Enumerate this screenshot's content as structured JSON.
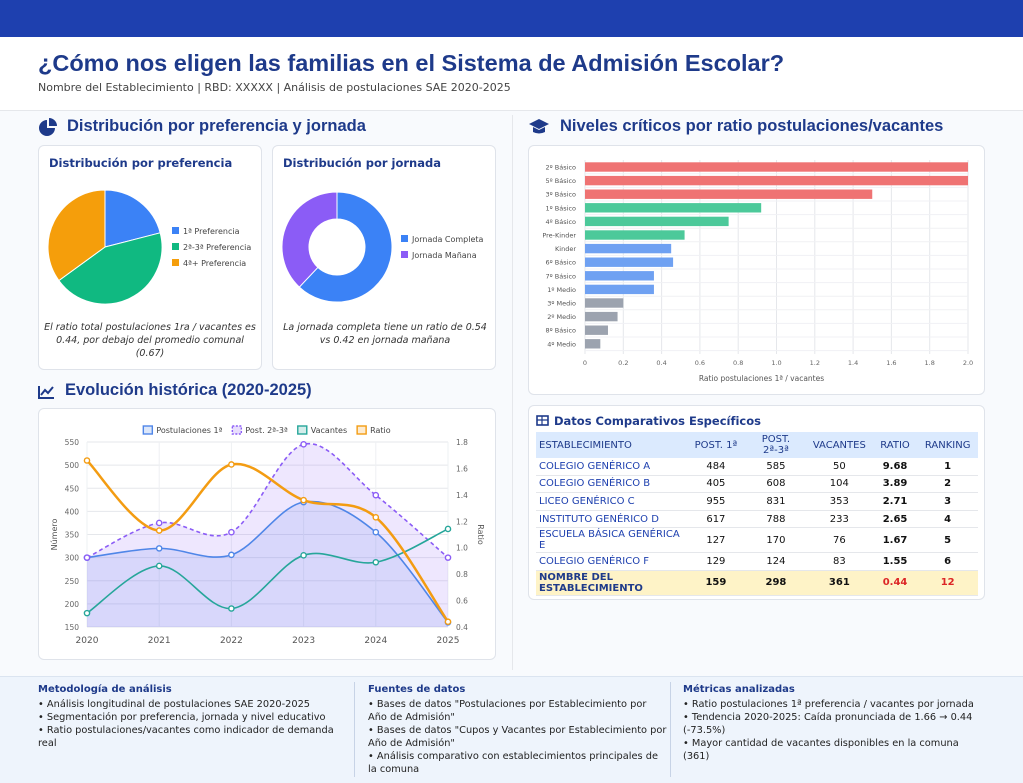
{
  "header": {
    "title": "¿Cómo nos eligen las familias en el Sistema de Admisión Escolar?",
    "subtitle": "Nombre del Establecimiento | RBD: XXXXX | Análisis de postulaciones SAE 2020-2025"
  },
  "sections": {
    "distribution": "Distribución por preferencia y jornada",
    "evolution": "Evolución histórica (2020-2025)",
    "levels": "Niveles críticos por ratio postulaciones/vacantes"
  },
  "chart_data": [
    {
      "type": "pie",
      "title": "Distribución por preferencia",
      "categories": [
        "1ª Preferencia",
        "2ª-3ª Preferencia",
        "4ª+ Preferencia"
      ],
      "values": [
        21,
        44,
        35
      ],
      "colors": [
        "#3b82f6",
        "#10b981",
        "#f59e0b"
      ],
      "note": "El ratio total postulaciones 1ra / vacantes es 0.44, por debajo del promedio comunal (0.67)"
    },
    {
      "type": "donut",
      "title": "Distribución por jornada",
      "categories": [
        "Jornada Completa",
        "Jornada Mañana"
      ],
      "values": [
        62,
        38
      ],
      "colors": [
        "#3b82f6",
        "#8b5cf6"
      ],
      "note": "La jornada completa tiene un ratio de 0.54 vs 0.42 en jornada mañana"
    },
    {
      "type": "line",
      "categories": [
        "2020",
        "2021",
        "2022",
        "2023",
        "2024",
        "2025"
      ],
      "ylabel": "Número",
      "y2label": "Ratio",
      "ylim": [
        150,
        550
      ],
      "yticks": [
        150,
        200,
        250,
        300,
        350,
        400,
        450,
        500,
        550
      ],
      "y2lim": [
        0.4,
        1.8
      ],
      "y2ticks": [
        0.4,
        0.6,
        0.8,
        {
          "value": 1,
          "label": "1.0"
        },
        1.2,
        1.4,
        1.6,
        1.8
      ],
      "grid": true,
      "series": [
        {
          "name": "Postulaciones 1ª",
          "color": "#4f86e8",
          "values": [
            300,
            320,
            306,
            420,
            355,
            160
          ],
          "area": true
        },
        {
          "name": "Post. 2ª-3ª",
          "color": "#8b5cf6",
          "values": [
            300,
            375,
            355,
            545,
            435,
            300
          ],
          "area": true,
          "dashed": true
        },
        {
          "name": "Vacantes",
          "color": "#26a69a",
          "values": [
            180,
            282,
            190,
            305,
            290,
            362
          ]
        },
        {
          "name": "Ratio",
          "color": "#f39c12",
          "values": [
            1.66,
            1.13,
            1.63,
            1.36,
            1.23,
            0.44
          ],
          "axis": "y2"
        }
      ]
    },
    {
      "type": "barh",
      "categories": [
        "2º Básico",
        "5º Básico",
        "3º Básico",
        "1º Básico",
        "4º Básico",
        "Pre-Kinder",
        "Kinder",
        "6º Básico",
        "7º Básico",
        "1º Medio",
        "3º Medio",
        "2º Medio",
        "8º Básico",
        "4º Medio"
      ],
      "values": [
        2.0,
        2.0,
        1.5,
        0.92,
        0.75,
        0.52,
        0.45,
        0.46,
        0.36,
        0.36,
        0.2,
        0.17,
        0.12,
        0.08
      ],
      "colors": [
        "#ef7373",
        "#ef7373",
        "#ef7373",
        "#4cc99a",
        "#4cc99a",
        "#4cc99a",
        "#6fa1f2",
        "#6fa1f2",
        "#6fa1f2",
        "#6fa1f2",
        "#9ca3af",
        "#9ca3af",
        "#9ca3af",
        "#9ca3af"
      ],
      "xlabel": "Ratio postulaciones 1ª / vacantes",
      "xlim": [
        0,
        2
      ],
      "xticks": [
        0,
        0.2,
        0.4,
        0.6,
        0.8,
        {
          "value": 1,
          "label": "1.0"
        },
        1.2,
        1.4,
        1.6,
        1.8,
        {
          "value": 2,
          "label": "2.0"
        }
      ],
      "grid": true
    }
  ],
  "table": {
    "title": "Datos Comparativos Específicos",
    "columns": [
      "ESTABLECIMIENTO",
      "POST. 1ª",
      "POST. 2ª-3ª",
      "VACANTES",
      "RATIO",
      "RANKING"
    ],
    "rows": [
      [
        "COLEGIO GENÉRICO A",
        484,
        585,
        50,
        9.68,
        1
      ],
      [
        "COLEGIO GENÉRICO B",
        405,
        608,
        104,
        3.89,
        2
      ],
      [
        "LICEO GENÉRICO C",
        955,
        831,
        353,
        2.71,
        3
      ],
      [
        "INSTITUTO GENÉRICO D",
        617,
        788,
        233,
        2.65,
        4
      ],
      [
        "ESCUELA BÁSICA GENÉRICA E",
        127,
        170,
        76,
        1.67,
        5
      ],
      [
        "COLEGIO GENÉRICO F",
        129,
        124,
        83,
        1.55,
        6
      ],
      [
        "NOMBRE DEL ESTABLECIMIENTO",
        159,
        298,
        361,
        0.44,
        12
      ]
    ]
  },
  "footer": [
    {
      "title": "Metodología de análisis",
      "items": [
        "Análisis longitudinal de postulaciones SAE 2020-2025",
        "Segmentación por preferencia, jornada y nivel educativo",
        "Ratio postulaciones/vacantes como indicador de demanda real"
      ]
    },
    {
      "title": "Fuentes de datos",
      "items": [
        "Bases de datos \"Postulaciones por Establecimiento por Año de Admisión\"",
        "Bases de datos \"Cupos y Vacantes por Establecimiento por Año de Admisión\"",
        "Análisis comparativo con establecimientos principales de la comuna"
      ]
    },
    {
      "title": "Métricas analizadas",
      "items": [
        "Ratio postulaciones 1ª preferencia / vacantes por jornada",
        "Tendencia 2020-2025: Caída pronunciada de 1.66 → 0.44 (-73.5%)",
        "Mayor cantidad de vacantes disponibles en la comuna (361)"
      ]
    }
  ]
}
